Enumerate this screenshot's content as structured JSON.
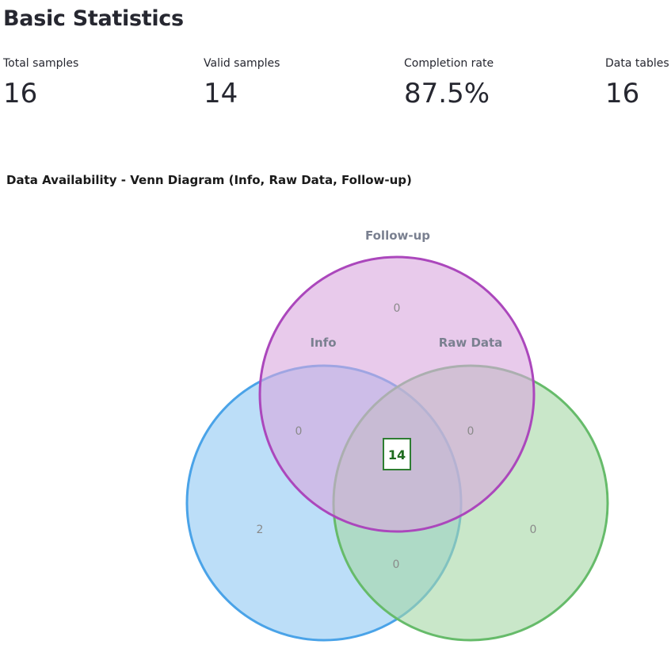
{
  "page": {
    "title": "Basic Statistics"
  },
  "metrics": [
    {
      "label": "Total samples",
      "value": "16"
    },
    {
      "label": "Valid samples",
      "value": "14"
    },
    {
      "label": "Completion rate",
      "value": "87.5%"
    },
    {
      "label": "Data tables",
      "value": "16"
    }
  ],
  "venn": {
    "title": "Data Availability - Venn Diagram (Info, Raw Data, Follow-up)",
    "sets": {
      "info": {
        "label": "Info",
        "fill": "#90c8f4",
        "stroke": "#4aa3e8"
      },
      "raw_data": {
        "label": "Raw Data",
        "fill": "#a5d7a5",
        "stroke": "#66bb6a"
      },
      "follow_up": {
        "label": "Follow-up",
        "fill": "#d9a6dd",
        "stroke": "#ab47bc"
      }
    },
    "regions": {
      "info_only": "2",
      "raw_data_only": "0",
      "follow_up_only": "0",
      "info_follow_up": "0",
      "raw_data_follow_up": "0",
      "info_raw_data": "0",
      "all_three": "14"
    },
    "center_box_color": "#2e7d32"
  }
}
